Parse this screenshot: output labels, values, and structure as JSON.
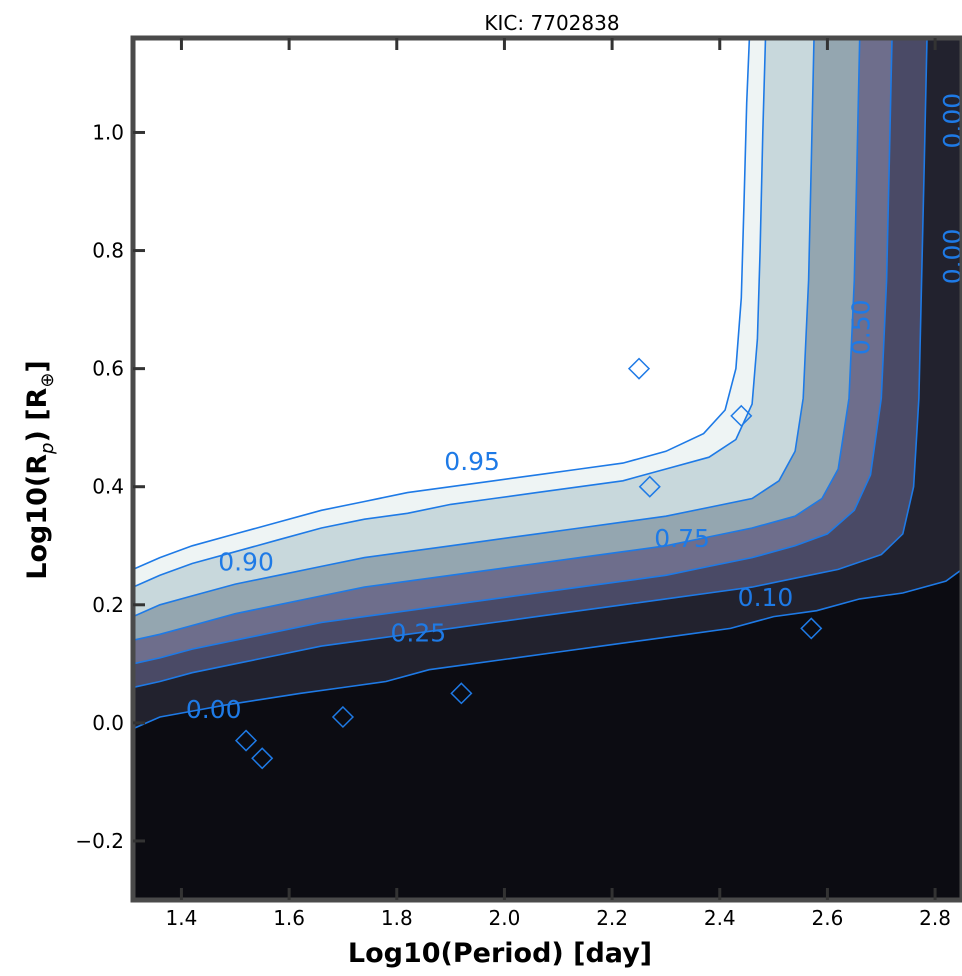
{
  "chart_data": {
    "type": "contour",
    "title": "KIC: 7702838",
    "xlabel": "Log10(Period) [day]",
    "ylabel": "Log10(R_p) [R_⊕]",
    "xlim": [
      1.31,
      2.85
    ],
    "ylim": [
      -0.3,
      1.16
    ],
    "xticks": [
      1.4,
      1.6,
      1.8,
      2.0,
      2.2,
      2.4,
      2.6,
      2.8
    ],
    "yticks": [
      -0.2,
      0.0,
      0.2,
      0.4,
      0.6,
      0.8,
      1.0
    ],
    "xtick_labels": [
      "1.4",
      "1.6",
      "1.8",
      "2.0",
      "2.2",
      "2.4",
      "2.6",
      "2.8"
    ],
    "ytick_labels": [
      "−0.2",
      "0.0",
      "0.2",
      "0.4",
      "0.6",
      "0.8",
      "1.0"
    ],
    "contour_levels": [
      0.0,
      0.1,
      0.25,
      0.5,
      0.75,
      0.9,
      0.95
    ],
    "level_colors": [
      "#0c0c12",
      "#22222e",
      "#4a4a66",
      "#6e6e8c",
      "#94a6b0",
      "#c8d8dc",
      "#eef4f4",
      "#ffffff"
    ],
    "line_color": "#1e7ae6",
    "contour_labels": [
      {
        "text": "0.95",
        "x": 1.94,
        "y": 0.44
      },
      {
        "text": "0.90",
        "x": 1.52,
        "y": 0.27
      },
      {
        "text": "0.75",
        "x": 2.33,
        "y": 0.31
      },
      {
        "text": "0.50",
        "x": 2.665,
        "y": 0.67
      },
      {
        "text": "0.10",
        "x": 2.485,
        "y": 0.21
      },
      {
        "text": "0.25",
        "x": 1.84,
        "y": 0.15
      },
      {
        "text": "0.00",
        "x": 1.46,
        "y": 0.02
      },
      {
        "text": "0.00",
        "x": 2.835,
        "y": 1.02
      },
      {
        "text": "0.00",
        "x": 2.835,
        "y": 0.79
      }
    ],
    "boundaries": [
      {
        "level": "0.00",
        "pts": [
          [
            1.31,
            -0.01
          ],
          [
            1.36,
            0.01
          ],
          [
            1.42,
            0.02
          ],
          [
            1.48,
            0.03
          ],
          [
            1.55,
            0.04
          ],
          [
            1.62,
            0.05
          ],
          [
            1.7,
            0.06
          ],
          [
            1.78,
            0.07
          ],
          [
            1.86,
            0.09
          ],
          [
            1.94,
            0.1
          ],
          [
            2.02,
            0.11
          ],
          [
            2.1,
            0.12
          ],
          [
            2.18,
            0.13
          ],
          [
            2.26,
            0.14
          ],
          [
            2.34,
            0.15
          ],
          [
            2.42,
            0.16
          ],
          [
            2.5,
            0.18
          ],
          [
            2.58,
            0.19
          ],
          [
            2.66,
            0.21
          ],
          [
            2.74,
            0.22
          ],
          [
            2.82,
            0.24
          ],
          [
            2.85,
            0.26
          ]
        ],
        "lcorner": [
          2.86,
          0.26
        ],
        "rtop": [
          2.86,
          1.16
        ]
      },
      {
        "level": "0.10",
        "pts": [
          [
            1.31,
            0.06
          ],
          [
            1.36,
            0.07
          ],
          [
            1.42,
            0.085
          ],
          [
            1.5,
            0.1
          ],
          [
            1.58,
            0.115
          ],
          [
            1.66,
            0.13
          ],
          [
            1.74,
            0.14
          ],
          [
            1.82,
            0.15
          ],
          [
            1.9,
            0.16
          ],
          [
            1.98,
            0.17
          ],
          [
            2.06,
            0.18
          ],
          [
            2.14,
            0.19
          ],
          [
            2.22,
            0.2
          ],
          [
            2.3,
            0.21
          ],
          [
            2.38,
            0.22
          ],
          [
            2.46,
            0.23
          ],
          [
            2.54,
            0.245
          ],
          [
            2.62,
            0.26
          ],
          [
            2.7,
            0.285
          ],
          [
            2.74,
            0.32
          ],
          [
            2.76,
            0.4
          ],
          [
            2.77,
            0.55
          ],
          [
            2.775,
            0.75
          ],
          [
            2.78,
            0.95
          ],
          [
            2.785,
            1.16
          ]
        ]
      },
      {
        "level": "0.25",
        "pts": [
          [
            1.31,
            0.1
          ],
          [
            1.36,
            0.11
          ],
          [
            1.42,
            0.125
          ],
          [
            1.5,
            0.14
          ],
          [
            1.58,
            0.155
          ],
          [
            1.66,
            0.17
          ],
          [
            1.74,
            0.18
          ],
          [
            1.82,
            0.19
          ],
          [
            1.9,
            0.2
          ],
          [
            1.98,
            0.21
          ],
          [
            2.06,
            0.22
          ],
          [
            2.14,
            0.23
          ],
          [
            2.22,
            0.24
          ],
          [
            2.3,
            0.25
          ],
          [
            2.38,
            0.265
          ],
          [
            2.46,
            0.28
          ],
          [
            2.54,
            0.3
          ],
          [
            2.6,
            0.32
          ],
          [
            2.65,
            0.36
          ],
          [
            2.68,
            0.42
          ],
          [
            2.7,
            0.55
          ],
          [
            2.71,
            0.75
          ],
          [
            2.715,
            0.95
          ],
          [
            2.72,
            1.16
          ]
        ]
      },
      {
        "level": "0.50",
        "pts": [
          [
            1.31,
            0.14
          ],
          [
            1.36,
            0.15
          ],
          [
            1.42,
            0.165
          ],
          [
            1.5,
            0.185
          ],
          [
            1.58,
            0.2
          ],
          [
            1.66,
            0.215
          ],
          [
            1.74,
            0.23
          ],
          [
            1.82,
            0.24
          ],
          [
            1.9,
            0.25
          ],
          [
            1.98,
            0.26
          ],
          [
            2.06,
            0.27
          ],
          [
            2.14,
            0.28
          ],
          [
            2.22,
            0.29
          ],
          [
            2.3,
            0.3
          ],
          [
            2.38,
            0.315
          ],
          [
            2.46,
            0.33
          ],
          [
            2.54,
            0.35
          ],
          [
            2.59,
            0.38
          ],
          [
            2.62,
            0.43
          ],
          [
            2.64,
            0.55
          ],
          [
            2.65,
            0.75
          ],
          [
            2.655,
            0.95
          ],
          [
            2.66,
            1.16
          ]
        ]
      },
      {
        "level": "0.75",
        "pts": [
          [
            1.31,
            0.18
          ],
          [
            1.36,
            0.2
          ],
          [
            1.42,
            0.215
          ],
          [
            1.5,
            0.235
          ],
          [
            1.58,
            0.25
          ],
          [
            1.66,
            0.265
          ],
          [
            1.74,
            0.28
          ],
          [
            1.82,
            0.29
          ],
          [
            1.9,
            0.3
          ],
          [
            1.98,
            0.31
          ],
          [
            2.06,
            0.32
          ],
          [
            2.14,
            0.33
          ],
          [
            2.22,
            0.34
          ],
          [
            2.3,
            0.35
          ],
          [
            2.38,
            0.365
          ],
          [
            2.46,
            0.38
          ],
          [
            2.51,
            0.41
          ],
          [
            2.54,
            0.46
          ],
          [
            2.555,
            0.55
          ],
          [
            2.565,
            0.75
          ],
          [
            2.57,
            0.95
          ],
          [
            2.575,
            1.16
          ]
        ]
      },
      {
        "level": "0.90",
        "pts": [
          [
            1.31,
            0.23
          ],
          [
            1.36,
            0.25
          ],
          [
            1.42,
            0.27
          ],
          [
            1.5,
            0.29
          ],
          [
            1.58,
            0.31
          ],
          [
            1.66,
            0.33
          ],
          [
            1.74,
            0.345
          ],
          [
            1.82,
            0.355
          ],
          [
            1.9,
            0.37
          ],
          [
            1.98,
            0.38
          ],
          [
            2.06,
            0.39
          ],
          [
            2.14,
            0.4
          ],
          [
            2.22,
            0.41
          ],
          [
            2.3,
            0.43
          ],
          [
            2.38,
            0.45
          ],
          [
            2.43,
            0.48
          ],
          [
            2.46,
            0.54
          ],
          [
            2.47,
            0.65
          ],
          [
            2.475,
            0.8
          ],
          [
            2.48,
            1.0
          ],
          [
            2.485,
            1.16
          ]
        ]
      },
      {
        "level": "0.95",
        "pts": [
          [
            1.31,
            0.26
          ],
          [
            1.36,
            0.28
          ],
          [
            1.42,
            0.3
          ],
          [
            1.5,
            0.32
          ],
          [
            1.58,
            0.34
          ],
          [
            1.66,
            0.36
          ],
          [
            1.74,
            0.375
          ],
          [
            1.82,
            0.39
          ],
          [
            1.9,
            0.4
          ],
          [
            1.98,
            0.41
          ],
          [
            2.06,
            0.42
          ],
          [
            2.14,
            0.43
          ],
          [
            2.22,
            0.44
          ],
          [
            2.3,
            0.46
          ],
          [
            2.37,
            0.49
          ],
          [
            2.41,
            0.53
          ],
          [
            2.43,
            0.6
          ],
          [
            2.44,
            0.72
          ],
          [
            2.445,
            0.88
          ],
          [
            2.45,
            1.05
          ],
          [
            2.455,
            1.16
          ]
        ]
      }
    ],
    "island_markers": [
      {
        "x": 1.52,
        "y": -0.03
      },
      {
        "x": 1.55,
        "y": -0.06
      },
      {
        "x": 1.7,
        "y": 0.01
      },
      {
        "x": 1.92,
        "y": 0.05
      },
      {
        "x": 2.57,
        "y": 0.16
      },
      {
        "x": 2.25,
        "y": 0.6
      },
      {
        "x": 2.27,
        "y": 0.4
      },
      {
        "x": 2.44,
        "y": 0.52
      }
    ]
  }
}
